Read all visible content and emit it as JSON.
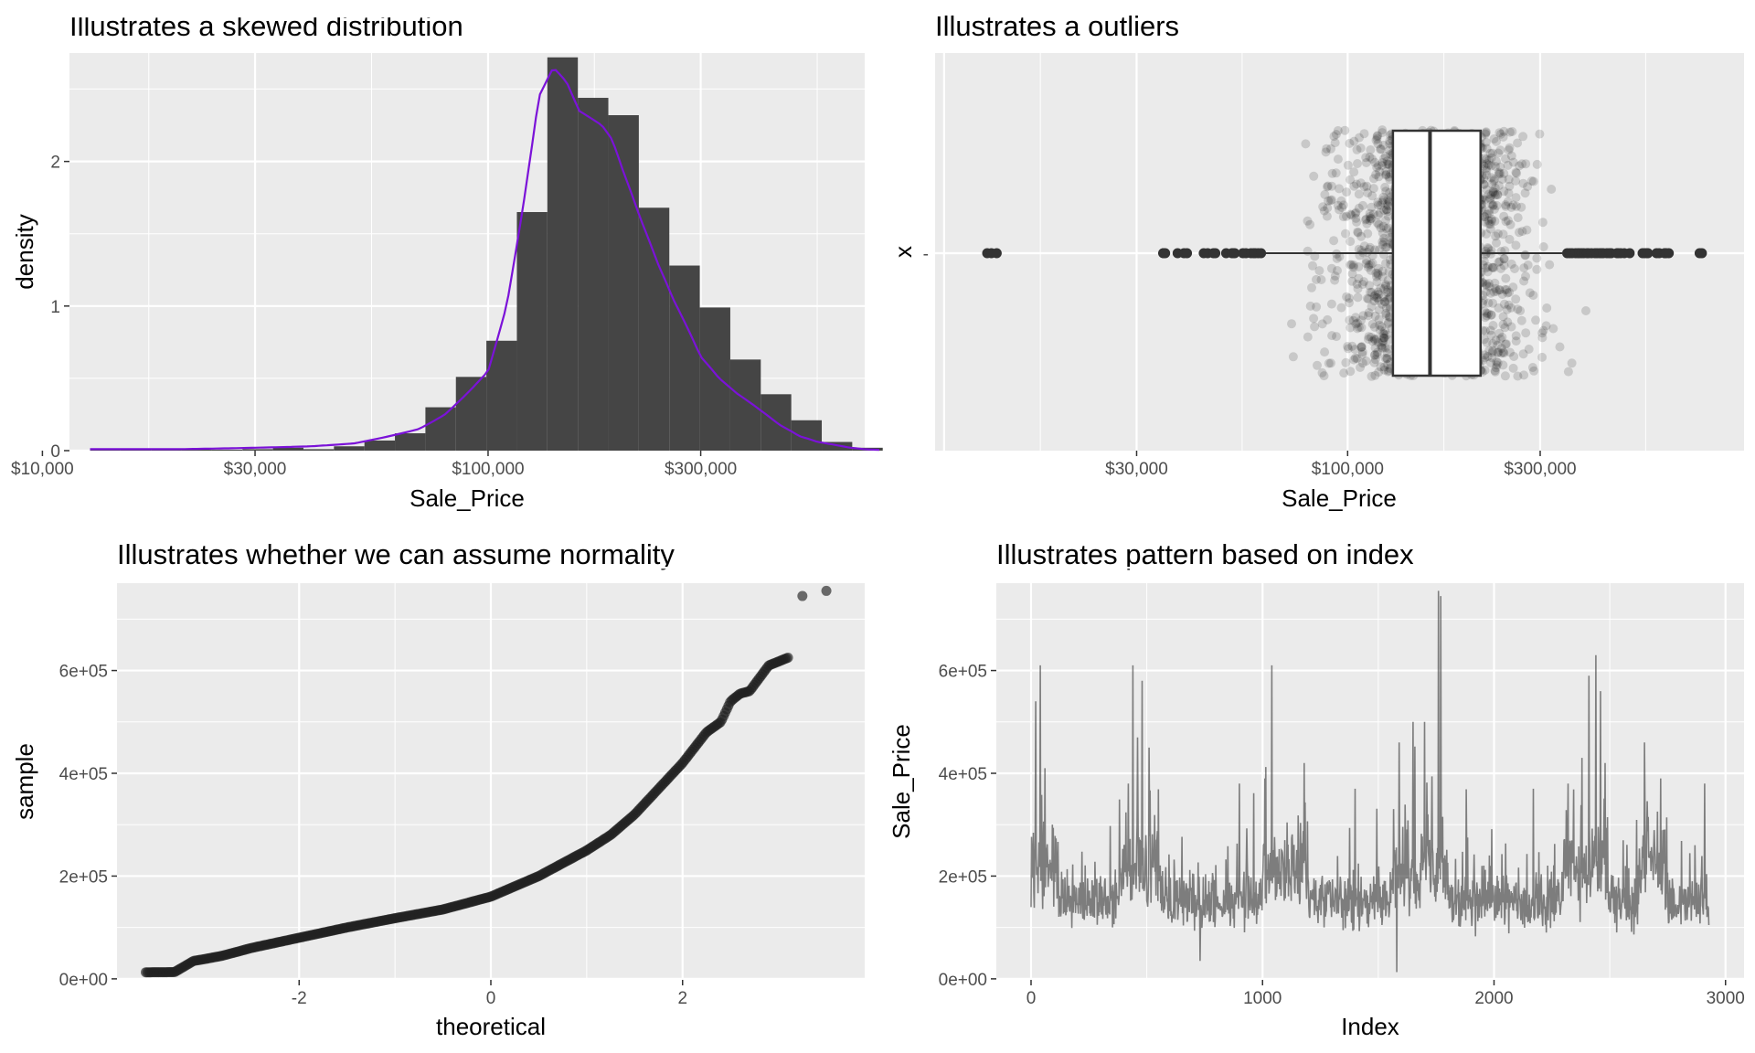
{
  "chart_data": [
    {
      "type": "histogram",
      "title": "Illustrates a skewed distribution",
      "xlabel": "Sale_Price",
      "ylabel": "density",
      "x_scale": "log10",
      "xlim": [
        11500,
        700000
      ],
      "ylim": [
        0,
        2.75
      ],
      "x_ticks": [
        10000,
        30000,
        100000,
        300000
      ],
      "x_tick_labels": [
        "$10,000",
        "$30,000",
        "$100,000",
        "$300,000"
      ],
      "y_ticks": [
        0,
        1,
        2
      ],
      "y_tick_labels": [
        "0",
        "1",
        "2"
      ],
      "bins": [
        {
          "x0": 12789,
          "x1": 14972,
          "density": 0.005
        },
        {
          "x0": 14972,
          "x1": 17526,
          "density": 0
        },
        {
          "x0": 17526,
          "x1": 20516,
          "density": 0
        },
        {
          "x0": 20516,
          "x1": 24016,
          "density": 0
        },
        {
          "x0": 24016,
          "x1": 28113,
          "density": 0
        },
        {
          "x0": 28113,
          "x1": 32909,
          "density": 0.01
        },
        {
          "x0": 32909,
          "x1": 38523,
          "density": 0.02
        },
        {
          "x0": 38523,
          "x1": 45096,
          "density": 0.01
        },
        {
          "x0": 45096,
          "x1": 52790,
          "density": 0.03
        },
        {
          "x0": 52790,
          "x1": 61796,
          "density": 0.07
        },
        {
          "x0": 61796,
          "x1": 72339,
          "density": 0.12
        },
        {
          "x0": 72339,
          "x1": 84681,
          "density": 0.3
        },
        {
          "x0": 84681,
          "x1": 99128,
          "density": 0.51
        },
        {
          "x0": 99128,
          "x1": 116039,
          "density": 0.76
        },
        {
          "x0": 116039,
          "x1": 135837,
          "density": 1.65
        },
        {
          "x0": 135837,
          "x1": 159012,
          "density": 2.72
        },
        {
          "x0": 159012,
          "x1": 186141,
          "density": 2.44
        },
        {
          "x0": 186141,
          "x1": 217899,
          "density": 2.32
        },
        {
          "x0": 217899,
          "x1": 255075,
          "density": 1.68
        },
        {
          "x0": 255075,
          "x1": 298593,
          "density": 1.28
        },
        {
          "x0": 298593,
          "x1": 349536,
          "density": 0.99
        },
        {
          "x0": 349536,
          "x1": 409171,
          "density": 0.63
        },
        {
          "x0": 409171,
          "x1": 478980,
          "density": 0.39
        },
        {
          "x0": 478980,
          "x1": 560699,
          "density": 0.21
        },
        {
          "x0": 560699,
          "x1": 656360,
          "density": 0.06
        },
        {
          "x0": 656360,
          "x1": 768342,
          "density": 0.02
        }
      ],
      "density_curve": {
        "color": "#7B12D8",
        "x": [
          12789,
          20000,
          30000,
          40000,
          50000,
          60000,
          70000,
          80000,
          90000,
          100000,
          110000,
          120000,
          130000,
          140000,
          150000,
          160000,
          170000,
          180000,
          190000,
          200000,
          220000,
          240000,
          260000,
          280000,
          300000,
          330000,
          360000,
          400000,
          450000,
          500000,
          550000,
          600000,
          650000,
          700000,
          755000
        ],
        "y": [
          0.01,
          0.01,
          0.02,
          0.03,
          0.05,
          0.1,
          0.15,
          0.25,
          0.4,
          0.55,
          1.0,
          1.7,
          2.45,
          2.65,
          2.55,
          2.35,
          2.3,
          2.25,
          2.15,
          1.95,
          1.6,
          1.3,
          1.05,
          0.85,
          0.65,
          0.5,
          0.4,
          0.3,
          0.18,
          0.1,
          0.06,
          0.04,
          0.02,
          0.01,
          0.005
        ]
      }
    },
    {
      "type": "boxplot",
      "title": "Illustrates a outliers",
      "xlabel": "Sale_Price",
      "ylabel": "x",
      "x_scale": "log10",
      "xlim": [
        9500,
        960000
      ],
      "x_ticks": [
        30000,
        100000,
        300000
      ],
      "x_tick_labels": [
        "$30,000",
        "$100,000",
        "$300,000"
      ],
      "y_tick_labels": [
        "-"
      ],
      "box": {
        "q1": 129500,
        "median": 160000,
        "q3": 213500,
        "whisker_low": 62000,
        "whisker_high": 340000
      },
      "outliers": [
        12789,
        13100,
        13500,
        34900,
        35000,
        35311,
        37900,
        39300,
        40000,
        44000,
        45000,
        46500,
        47000,
        50000,
        51689,
        52000,
        52500,
        55000,
        55993,
        57625,
        58500,
        59000,
        60000,
        61000,
        350000,
        355000,
        360000,
        367000,
        372000,
        375000,
        380000,
        385000,
        392000,
        395000,
        402000,
        410000,
        415000,
        421250,
        426000,
        430000,
        438780,
        445000,
        450000,
        465000,
        468000,
        475000,
        485000,
        500000,
        538000,
        545224,
        552000,
        555000,
        582933,
        591587,
        610000,
        611657,
        615000,
        625000,
        745000,
        755000
      ],
      "jitter_alpha": 0.15,
      "jitter_n": 2930
    },
    {
      "type": "scatter",
      "title": "Illustrates whether we can assume normality",
      "xlabel": "theoretical",
      "ylabel": "sample",
      "xlim": [
        -3.9,
        3.9
      ],
      "ylim": [
        -2000,
        770000
      ],
      "x_ticks": [
        -2,
        0,
        2
      ],
      "x_tick_labels": [
        "-2",
        "0",
        "2"
      ],
      "y_ticks": [
        0,
        200000,
        400000,
        600000
      ],
      "y_tick_labels": [
        "0e+00",
        "2e+05",
        "4e+05",
        "6e+05"
      ],
      "reference_quantiles": {
        "z": [
          -3.6,
          -3.3,
          -3.1,
          -3.0,
          -2.8,
          -2.5,
          -2.0,
          -1.5,
          -1.0,
          -0.5,
          0.0,
          0.5,
          1.0,
          1.25,
          1.5,
          1.75,
          2.0,
          2.25,
          2.4,
          2.5,
          2.6,
          2.7,
          2.9,
          3.1
        ],
        "y": [
          12789,
          13100,
          35000,
          38000,
          45000,
          60000,
          80000,
          100000,
          118000,
          135000,
          160000,
          200000,
          250000,
          280000,
          320000,
          370000,
          420000,
          480000,
          500000,
          540000,
          555000,
          560000,
          610000,
          625000
        ]
      },
      "extreme_points": [
        [
          3.25,
          745000
        ],
        [
          3.5,
          755000
        ]
      ]
    },
    {
      "type": "line",
      "title": "Illustrates pattern based on index",
      "xlabel": "Index",
      "ylabel": "Sale_Price",
      "xlim": [
        -150,
        3080
      ],
      "ylim": [
        -2000,
        770000
      ],
      "x_ticks": [
        0,
        1000,
        2000,
        3000
      ],
      "x_tick_labels": [
        "0",
        "1000",
        "2000",
        "3000"
      ],
      "y_ticks": [
        0,
        200000,
        400000,
        600000
      ],
      "y_tick_labels": [
        "0e+00",
        "2e+05",
        "4e+05",
        "6e+05"
      ],
      "n": 2930,
      "peaks": [
        [
          20,
          540000
        ],
        [
          40,
          610000
        ],
        [
          60,
          410000
        ],
        [
          420,
          380000
        ],
        [
          440,
          610000
        ],
        [
          460,
          470000
        ],
        [
          480,
          580000
        ],
        [
          510,
          450000
        ],
        [
          900,
          380000
        ],
        [
          1010,
          390000
        ],
        [
          1040,
          610000
        ],
        [
          1180,
          420000
        ],
        [
          1400,
          370000
        ],
        [
          1590,
          460000
        ],
        [
          1650,
          500000
        ],
        [
          1700,
          500000
        ],
        [
          1760,
          755000
        ],
        [
          1770,
          745000
        ],
        [
          2170,
          370000
        ],
        [
          2320,
          380000
        ],
        [
          2380,
          430000
        ],
        [
          2410,
          590000
        ],
        [
          2440,
          630000
        ],
        [
          2460,
          560000
        ],
        [
          2480,
          420000
        ],
        [
          2650,
          460000
        ],
        [
          2720,
          390000
        ],
        [
          2910,
          380000
        ]
      ],
      "troughs": [
        [
          205,
          12789
        ],
        [
          1580,
          13100
        ],
        [
          730,
          35000
        ]
      ],
      "color": "#333333",
      "alpha": 0.6
    }
  ]
}
